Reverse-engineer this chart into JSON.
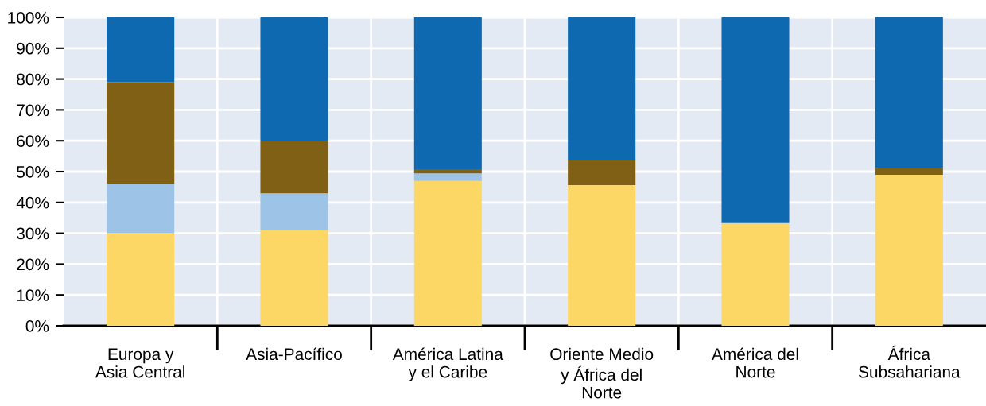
{
  "chart_data": {
    "type": "bar",
    "stacked": true,
    "categories": [
      "Europa y\nAsia Central",
      "Asia-Pacífico",
      "América Latina\ny el Caribe",
      "Oriente Medio\ny África del\nNorte",
      "América del\nNorte",
      "África\nSubsahariana"
    ],
    "series": [
      {
        "color": "#fcd766",
        "values": [
          30,
          31,
          47,
          45.6,
          33.3,
          49
        ]
      },
      {
        "color": "#9dc3e6",
        "values": [
          16,
          12,
          2.4,
          0,
          0,
          0
        ]
      },
      {
        "color": "#7f6015",
        "values": [
          33,
          17,
          1.4,
          8,
          0,
          2.1
        ]
      },
      {
        "color": "#0e69b0",
        "values": [
          21,
          40,
          49.2,
          46.4,
          66.7,
          48.9
        ]
      }
    ],
    "ylim": [
      0,
      100
    ],
    "yticks": [
      {
        "value": 0,
        "label": "0%"
      },
      {
        "value": 10,
        "label": "10%"
      },
      {
        "value": 20,
        "label": "20%"
      },
      {
        "value": 30,
        "label": "30%"
      },
      {
        "value": 40,
        "label": "40%"
      },
      {
        "value": 50,
        "label": "50%"
      },
      {
        "value": 60,
        "label": "60%"
      },
      {
        "value": 70,
        "label": "70%"
      },
      {
        "value": 80,
        "label": "80%"
      },
      {
        "value": 90,
        "label": "90%"
      },
      {
        "value": 100,
        "label": "100%"
      }
    ],
    "grid": true
  }
}
